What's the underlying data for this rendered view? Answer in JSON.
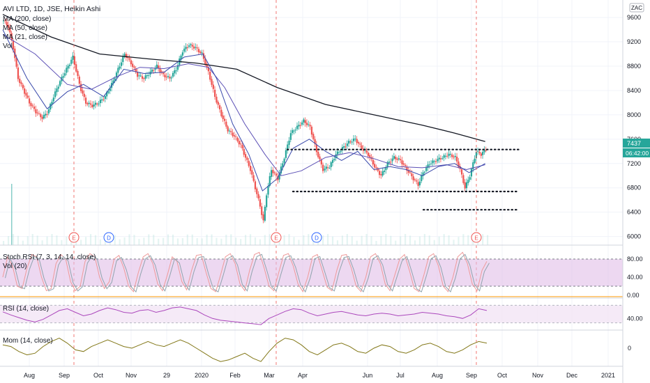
{
  "chart_data": {
    "type": "candlestick",
    "title": "AVI LTD, 1D, JSE, Heikin Ashi",
    "currency_badge": "ZAC",
    "indicators": [
      "MA (200, close)",
      "MA (50, close)",
      "MA (21, close)",
      "Vol"
    ],
    "price_axis": {
      "ticks": [
        "9600",
        "9200",
        "8800",
        "8400",
        "8000",
        "7600",
        "7200",
        "6800",
        "6400",
        "6000"
      ],
      "range": [
        5950,
        9750
      ]
    },
    "last_price": "7437",
    "countdown": "06:42:00",
    "x_labels": [
      "Aug",
      "Sep",
      "Oct",
      "Nov",
      "29",
      "2020",
      "Feb",
      "Mar",
      "Apr",
      "Jun",
      "Jul",
      "Aug",
      "Sep",
      "Oct",
      "Nov",
      "Dec",
      "2021"
    ],
    "events": [
      "E",
      "D",
      "E",
      "D",
      "E"
    ],
    "levels": [
      7430,
      6740,
      6440
    ],
    "price_points": [
      [
        0,
        9550
      ],
      [
        6,
        9450
      ],
      [
        12,
        9100
      ],
      [
        18,
        8600
      ],
      [
        25,
        8400
      ],
      [
        32,
        8200
      ],
      [
        40,
        8050
      ],
      [
        48,
        7950
      ],
      [
        55,
        8050
      ],
      [
        62,
        8300
      ],
      [
        70,
        8550
      ],
      [
        78,
        8750
      ],
      [
        86,
        8950
      ],
      [
        95,
        8450
      ],
      [
        102,
        8200
      ],
      [
        110,
        8150
      ],
      [
        118,
        8200
      ],
      [
        126,
        8300
      ],
      [
        134,
        8500
      ],
      [
        142,
        8750
      ],
      [
        150,
        9000
      ],
      [
        158,
        8850
      ],
      [
        166,
        8650
      ],
      [
        174,
        8600
      ],
      [
        182,
        8700
      ],
      [
        190,
        8800
      ],
      [
        198,
        8650
      ],
      [
        206,
        8600
      ],
      [
        214,
        8750
      ],
      [
        222,
        9050
      ],
      [
        230,
        9150
      ],
      [
        238,
        9100
      ],
      [
        246,
        9000
      ],
      [
        254,
        8700
      ],
      [
        262,
        8300
      ],
      [
        270,
        8000
      ],
      [
        278,
        7750
      ],
      [
        286,
        7650
      ],
      [
        294,
        7500
      ],
      [
        300,
        7300
      ],
      [
        306,
        7100
      ],
      [
        312,
        6800
      ],
      [
        318,
        6500
      ],
      [
        322,
        6250
      ],
      [
        326,
        6700
      ],
      [
        332,
        7100
      ],
      [
        340,
        6950
      ],
      [
        348,
        7300
      ],
      [
        356,
        7700
      ],
      [
        364,
        7800
      ],
      [
        372,
        7900
      ],
      [
        380,
        7800
      ],
      [
        388,
        7400
      ],
      [
        396,
        7100
      ],
      [
        404,
        7150
      ],
      [
        412,
        7350
      ],
      [
        420,
        7450
      ],
      [
        428,
        7550
      ],
      [
        436,
        7600
      ],
      [
        444,
        7450
      ],
      [
        452,
        7350
      ],
      [
        460,
        7150
      ],
      [
        468,
        7000
      ],
      [
        476,
        7200
      ],
      [
        484,
        7300
      ],
      [
        492,
        7250
      ],
      [
        500,
        7100
      ],
      [
        508,
        6950
      ],
      [
        514,
        6850
      ],
      [
        520,
        7050
      ],
      [
        528,
        7200
      ],
      [
        536,
        7250
      ],
      [
        544,
        7300
      ],
      [
        552,
        7350
      ],
      [
        560,
        7300
      ],
      [
        566,
        7100
      ],
      [
        572,
        6800
      ],
      [
        578,
        7000
      ],
      [
        586,
        7400
      ],
      [
        592,
        7350
      ],
      [
        598,
        7437
      ]
    ],
    "ma200_points": [
      [
        0,
        9650
      ],
      [
        60,
        9280
      ],
      [
        120,
        9000
      ],
      [
        180,
        8920
      ],
      [
        240,
        8850
      ],
      [
        290,
        8750
      ],
      [
        340,
        8450
      ],
      [
        400,
        8170
      ],
      [
        460,
        8000
      ],
      [
        520,
        7830
      ],
      [
        560,
        7700
      ],
      [
        598,
        7560
      ]
    ],
    "ma50_points": [
      [
        0,
        9320
      ],
      [
        40,
        9000
      ],
      [
        80,
        8500
      ],
      [
        110,
        8420
      ],
      [
        140,
        8620
      ],
      [
        170,
        8780
      ],
      [
        200,
        8760
      ],
      [
        230,
        8840
      ],
      [
        255,
        8780
      ],
      [
        275,
        8450
      ],
      [
        300,
        7850
      ],
      [
        325,
        7350
      ],
      [
        345,
        7000
      ],
      [
        370,
        7080
      ],
      [
        400,
        7300
      ],
      [
        430,
        7380
      ],
      [
        460,
        7280
      ],
      [
        490,
        7150
      ],
      [
        520,
        7130
      ],
      [
        550,
        7180
      ],
      [
        575,
        7100
      ],
      [
        598,
        7180
      ]
    ],
    "ma21_points": [
      [
        0,
        9400
      ],
      [
        30,
        8600
      ],
      [
        55,
        8100
      ],
      [
        80,
        8380
      ],
      [
        100,
        8500
      ],
      [
        125,
        8300
      ],
      [
        150,
        8750
      ],
      [
        175,
        8680
      ],
      [
        200,
        8700
      ],
      [
        225,
        8950
      ],
      [
        248,
        9000
      ],
      [
        265,
        8600
      ],
      [
        285,
        7850
      ],
      [
        305,
        7350
      ],
      [
        322,
        6750
      ],
      [
        340,
        6950
      ],
      [
        360,
        7450
      ],
      [
        380,
        7600
      ],
      [
        400,
        7400
      ],
      [
        420,
        7250
      ],
      [
        440,
        7400
      ],
      [
        460,
        7100
      ],
      [
        480,
        7150
      ],
      [
        500,
        7100
      ],
      [
        520,
        7000
      ],
      [
        540,
        7150
      ],
      [
        560,
        7200
      ],
      [
        578,
        7050
      ],
      [
        598,
        7200
      ]
    ],
    "stoch_rsi": {
      "title": "Stoch RSI (7, 3, 14, 14, close)",
      "sub": "Vol (20)",
      "ticks": [
        "80.00",
        "40.00",
        "0.00"
      ],
      "points": [
        [
          0,
          40
        ],
        [
          6,
          85
        ],
        [
          12,
          65
        ],
        [
          18,
          20
        ],
        [
          24,
          15
        ],
        [
          30,
          60
        ],
        [
          36,
          90
        ],
        [
          42,
          85
        ],
        [
          48,
          40
        ],
        [
          54,
          10
        ],
        [
          60,
          15
        ],
        [
          66,
          70
        ],
        [
          72,
          90
        ],
        [
          78,
          80
        ],
        [
          84,
          30
        ],
        [
          90,
          10
        ],
        [
          96,
          20
        ],
        [
          102,
          75
        ],
        [
          108,
          92
        ],
        [
          114,
          85
        ],
        [
          120,
          40
        ],
        [
          126,
          15
        ],
        [
          132,
          30
        ],
        [
          138,
          80
        ],
        [
          144,
          88
        ],
        [
          150,
          60
        ],
        [
          156,
          20
        ],
        [
          162,
          8
        ],
        [
          168,
          50
        ],
        [
          174,
          85
        ],
        [
          180,
          92
        ],
        [
          186,
          70
        ],
        [
          192,
          25
        ],
        [
          198,
          10
        ],
        [
          204,
          45
        ],
        [
          210,
          85
        ],
        [
          216,
          75
        ],
        [
          222,
          30
        ],
        [
          228,
          12
        ],
        [
          234,
          55
        ],
        [
          240,
          88
        ],
        [
          246,
          90
        ],
        [
          252,
          50
        ],
        [
          258,
          15
        ],
        [
          264,
          8
        ],
        [
          270,
          45
        ],
        [
          276,
          85
        ],
        [
          282,
          92
        ],
        [
          288,
          70
        ],
        [
          294,
          25
        ],
        [
          300,
          10
        ],
        [
          306,
          55
        ],
        [
          312,
          90
        ],
        [
          318,
          95
        ],
        [
          324,
          60
        ],
        [
          330,
          20
        ],
        [
          336,
          10
        ],
        [
          342,
          50
        ],
        [
          348,
          88
        ],
        [
          354,
          92
        ],
        [
          360,
          65
        ],
        [
          366,
          25
        ],
        [
          372,
          8
        ],
        [
          378,
          40
        ],
        [
          384,
          85
        ],
        [
          390,
          90
        ],
        [
          396,
          55
        ],
        [
          402,
          18
        ],
        [
          408,
          10
        ],
        [
          414,
          55
        ],
        [
          420,
          88
        ],
        [
          426,
          90
        ],
        [
          432,
          60
        ],
        [
          438,
          20
        ],
        [
          444,
          8
        ],
        [
          450,
          40
        ],
        [
          456,
          85
        ],
        [
          462,
          92
        ],
        [
          468,
          70
        ],
        [
          474,
          25
        ],
        [
          480,
          10
        ],
        [
          486,
          45
        ],
        [
          492,
          80
        ],
        [
          498,
          90
        ],
        [
          504,
          55
        ],
        [
          510,
          15
        ],
        [
          516,
          8
        ],
        [
          522,
          45
        ],
        [
          528,
          85
        ],
        [
          534,
          92
        ],
        [
          540,
          65
        ],
        [
          546,
          20
        ],
        [
          552,
          8
        ],
        [
          558,
          40
        ],
        [
          564,
          85
        ],
        [
          570,
          95
        ],
        [
          576,
          70
        ],
        [
          582,
          25
        ],
        [
          588,
          10
        ],
        [
          594,
          55
        ],
        [
          600,
          75
        ]
      ]
    },
    "rsi": {
      "title": "RSI (14, close)",
      "ticks": [
        "40.00"
      ],
      "points": [
        [
          0,
          55
        ],
        [
          10,
          48
        ],
        [
          20,
          42
        ],
        [
          30,
          36
        ],
        [
          40,
          32
        ],
        [
          50,
          38
        ],
        [
          60,
          48
        ],
        [
          70,
          58
        ],
        [
          80,
          62
        ],
        [
          90,
          54
        ],
        [
          100,
          46
        ],
        [
          110,
          50
        ],
        [
          120,
          58
        ],
        [
          130,
          64
        ],
        [
          140,
          60
        ],
        [
          150,
          54
        ],
        [
          160,
          52
        ],
        [
          170,
          58
        ],
        [
          180,
          60
        ],
        [
          190,
          54
        ],
        [
          200,
          58
        ],
        [
          210,
          64
        ],
        [
          220,
          66
        ],
        [
          230,
          62
        ],
        [
          240,
          58
        ],
        [
          250,
          48
        ],
        [
          260,
          40
        ],
        [
          270,
          36
        ],
        [
          280,
          34
        ],
        [
          290,
          32
        ],
        [
          300,
          30
        ],
        [
          310,
          28
        ],
        [
          320,
          26
        ],
        [
          330,
          40
        ],
        [
          340,
          48
        ],
        [
          350,
          56
        ],
        [
          360,
          62
        ],
        [
          370,
          60
        ],
        [
          380,
          52
        ],
        [
          390,
          46
        ],
        [
          400,
          50
        ],
        [
          410,
          54
        ],
        [
          420,
          56
        ],
        [
          430,
          52
        ],
        [
          440,
          48
        ],
        [
          450,
          46
        ],
        [
          460,
          50
        ],
        [
          470,
          52
        ],
        [
          480,
          50
        ],
        [
          490,
          46
        ],
        [
          500,
          48
        ],
        [
          510,
          50
        ],
        [
          520,
          54
        ],
        [
          530,
          52
        ],
        [
          540,
          50
        ],
        [
          550,
          46
        ],
        [
          560,
          44
        ],
        [
          570,
          40
        ],
        [
          580,
          48
        ],
        [
          590,
          62
        ],
        [
          600,
          58
        ]
      ]
    },
    "momentum": {
      "title": "Mom (14, close)",
      "ticks": [
        "0"
      ],
      "points": [
        [
          0,
          200
        ],
        [
          10,
          100
        ],
        [
          20,
          -200
        ],
        [
          30,
          -400
        ],
        [
          40,
          -300
        ],
        [
          50,
          100
        ],
        [
          60,
          400
        ],
        [
          70,
          600
        ],
        [
          80,
          300
        ],
        [
          90,
          -100
        ],
        [
          100,
          -200
        ],
        [
          110,
          100
        ],
        [
          120,
          300
        ],
        [
          130,
          500
        ],
        [
          140,
          300
        ],
        [
          150,
          100
        ],
        [
          160,
          0
        ],
        [
          170,
          200
        ],
        [
          180,
          400
        ],
        [
          190,
          200
        ],
        [
          200,
          100
        ],
        [
          210,
          300
        ],
        [
          220,
          500
        ],
        [
          230,
          300
        ],
        [
          240,
          0
        ],
        [
          250,
          -300
        ],
        [
          260,
          -600
        ],
        [
          270,
          -800
        ],
        [
          280,
          -700
        ],
        [
          290,
          -500
        ],
        [
          300,
          -300
        ],
        [
          310,
          -600
        ],
        [
          320,
          -800
        ],
        [
          330,
          -200
        ],
        [
          340,
          300
        ],
        [
          350,
          600
        ],
        [
          360,
          500
        ],
        [
          370,
          200
        ],
        [
          380,
          -200
        ],
        [
          390,
          -400
        ],
        [
          400,
          -100
        ],
        [
          410,
          200
        ],
        [
          420,
          300
        ],
        [
          430,
          100
        ],
        [
          440,
          -200
        ],
        [
          450,
          -300
        ],
        [
          460,
          0
        ],
        [
          470,
          200
        ],
        [
          480,
          100
        ],
        [
          490,
          -200
        ],
        [
          500,
          -300
        ],
        [
          510,
          -100
        ],
        [
          520,
          200
        ],
        [
          530,
          300
        ],
        [
          540,
          100
        ],
        [
          550,
          -200
        ],
        [
          560,
          -300
        ],
        [
          570,
          -100
        ],
        [
          580,
          200
        ],
        [
          590,
          400
        ],
        [
          600,
          300
        ]
      ]
    }
  },
  "colors": {
    "up": "#26a69a",
    "down": "#ef5350",
    "ma200": "#131722",
    "ma50": "#5b4fb5",
    "ma21": "#3949ab",
    "stoch_band": "#e1bee7",
    "rsi_band": "#f3e5f5",
    "stoch_line": "#ab47bc",
    "mom_line": "#827717"
  }
}
